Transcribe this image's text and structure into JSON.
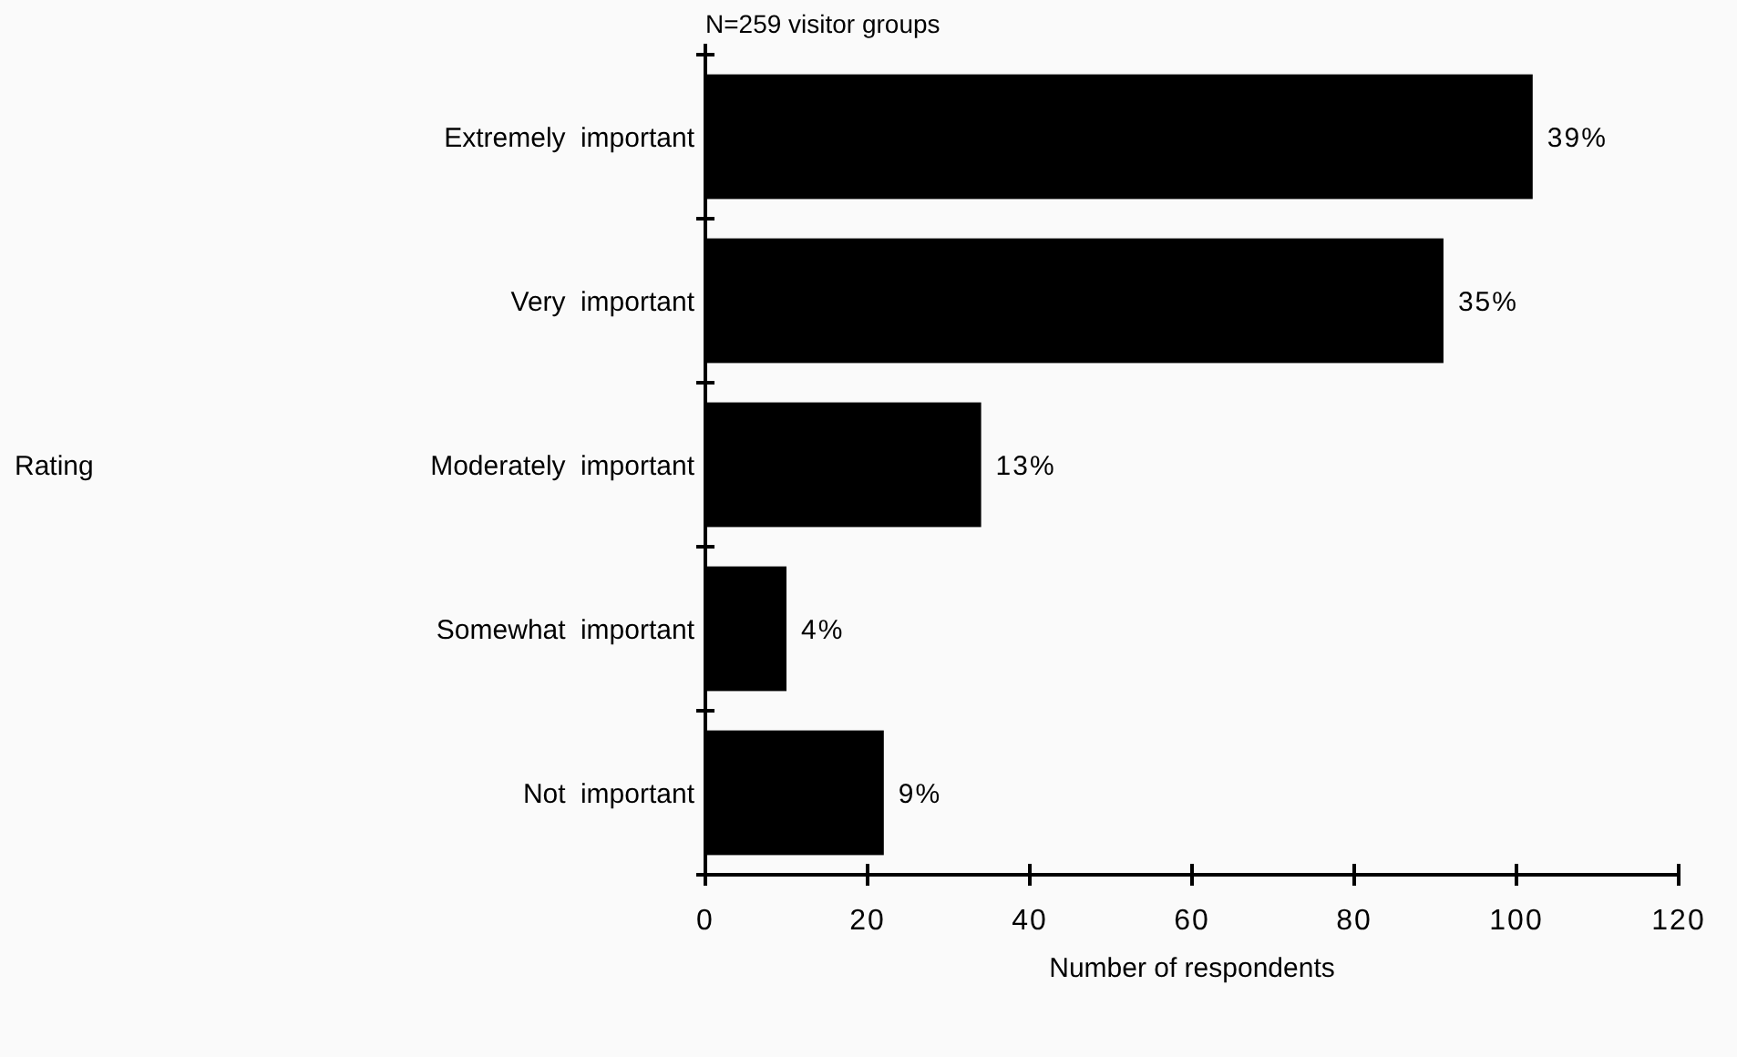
{
  "chart_data": {
    "type": "bar",
    "orientation": "horizontal",
    "title": "N=259 visitor groups",
    "xlabel": "Number of respondents",
    "categories": [
      "Extremely important",
      "Very important",
      "Moderately important",
      "Somewhat important",
      "Not important"
    ],
    "values": [
      102,
      91,
      34,
      10,
      22
    ],
    "annotations": [
      "Rating",
      {
        "text": "39%",
        "x": 102,
        "y": "Extremely important"
      },
      {
        "text": "35%",
        "x": 91,
        "y": "Very important"
      },
      {
        "text": "13%",
        "x": 34,
        "y": "Moderately important"
      },
      {
        "text": "4%",
        "x": 10,
        "y": "Somewhat important"
      },
      {
        "text": "9%",
        "x": 22,
        "y": "Not important"
      }
    ],
    "color": "#000000",
    "xlim": [
      0,
      120
    ],
    "xticks": [
      0,
      20,
      40,
      60,
      80,
      100,
      120
    ],
    "grid": false
  }
}
